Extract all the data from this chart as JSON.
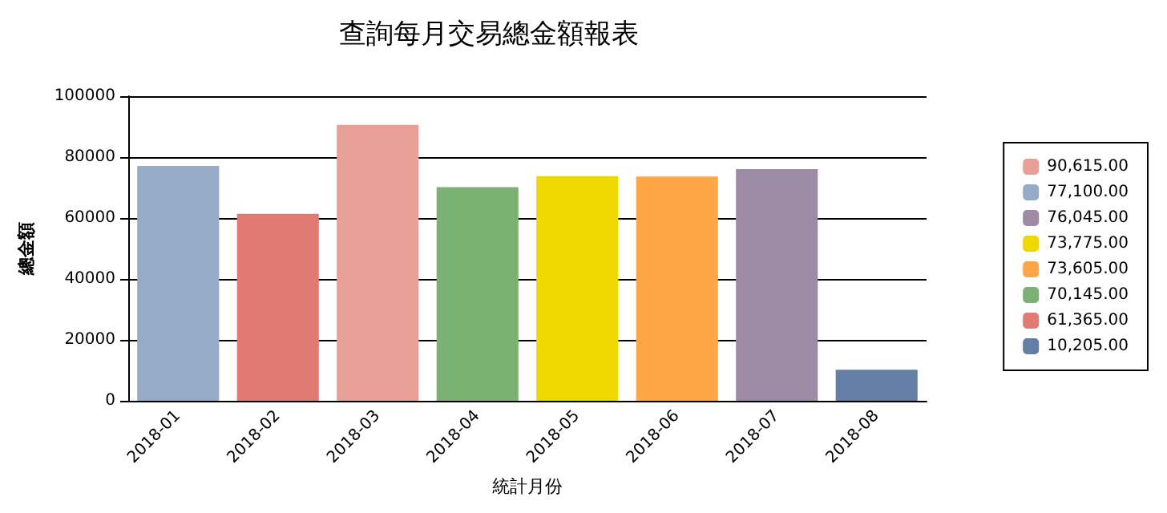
{
  "chart_data": {
    "type": "bar",
    "title": "查詢每月交易總金額報表",
    "xlabel": "統計月份",
    "ylabel": "總金額",
    "categories": [
      "2018-01",
      "2018-02",
      "2018-03",
      "2018-04",
      "2018-05",
      "2018-06",
      "2018-07",
      "2018-08"
    ],
    "series": [
      {
        "name": "90,615.00",
        "color": "#e8a096",
        "values": [
          null,
          null,
          90615,
          null,
          null,
          null,
          null,
          null
        ]
      },
      {
        "name": "77,100.00",
        "color": "#95abc8",
        "values": [
          77100,
          null,
          null,
          null,
          null,
          null,
          null,
          null
        ]
      },
      {
        "name": "76,045.00",
        "color": "#9d8ba5",
        "values": [
          null,
          null,
          null,
          null,
          null,
          null,
          76045,
          null
        ]
      },
      {
        "name": "73,775.00",
        "color": "#eed800",
        "values": [
          null,
          null,
          null,
          null,
          73775,
          null,
          null,
          null
        ]
      },
      {
        "name": "73,605.00",
        "color": "#fea546",
        "values": [
          null,
          null,
          null,
          null,
          null,
          73605,
          null,
          null
        ]
      },
      {
        "name": "70,145.00",
        "color": "#7cb174",
        "values": [
          null,
          null,
          null,
          70145,
          null,
          null,
          null,
          null
        ]
      },
      {
        "name": "61,365.00",
        "color": "#e07a73",
        "values": [
          null,
          61365,
          null,
          null,
          null,
          null,
          null,
          null
        ]
      },
      {
        "name": "10,205.00",
        "color": "#647ea6",
        "values": [
          null,
          null,
          null,
          null,
          null,
          null,
          null,
          10205
        ]
      }
    ],
    "ylim": [
      0,
      100000
    ],
    "yticks": [
      0,
      20000,
      40000,
      60000,
      80000,
      100000
    ],
    "grid": "y",
    "legend": "right"
  }
}
